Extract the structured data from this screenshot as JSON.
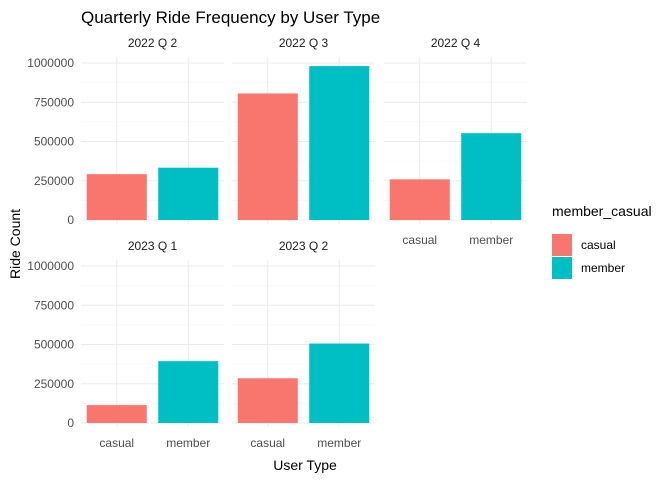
{
  "chart_data": {
    "type": "bar",
    "title": "Quarterly Ride Frequency by User Type",
    "xlabel": "User Type",
    "ylabel": "Ride Count",
    "categories": [
      "casual",
      "member"
    ],
    "ylim": [
      0,
      1000000
    ],
    "yticks": [
      0,
      250000,
      500000,
      750000,
      1000000
    ],
    "ytick_labels": [
      "0",
      "250000",
      "500000",
      "750000",
      "1000000"
    ],
    "grid": true,
    "legend": {
      "title": "member_casual",
      "position": "right",
      "items": [
        {
          "label": "casual",
          "color": "#F8766D"
        },
        {
          "label": "member",
          "color": "#00BFC4"
        }
      ]
    },
    "facets": [
      {
        "label": "2022 Q 2",
        "values": [
          292000,
          333000
        ]
      },
      {
        "label": "2022 Q 3",
        "values": [
          806000,
          980000
        ]
      },
      {
        "label": "2022 Q 4",
        "values": [
          259000,
          553000
        ]
      },
      {
        "label": "2023 Q 1",
        "values": [
          114000,
          394000
        ]
      },
      {
        "label": "2023 Q 2",
        "values": [
          285000,
          506000
        ]
      }
    ]
  }
}
